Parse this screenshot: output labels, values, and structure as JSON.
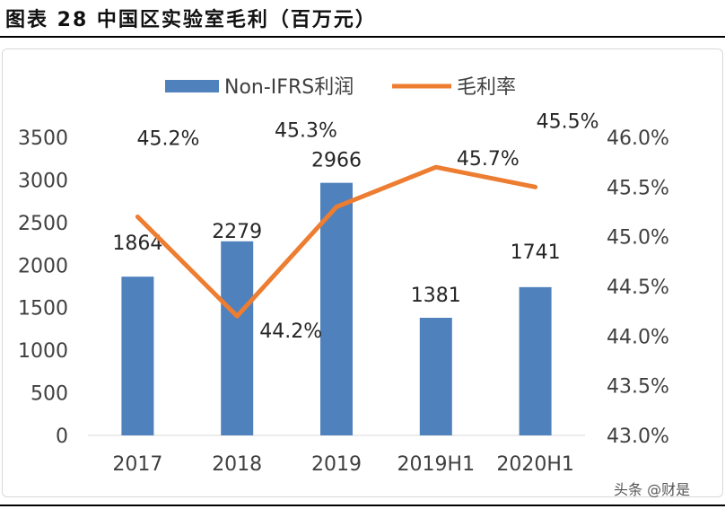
{
  "figure_title": "图表 28 中国区实验室毛利（百万元）",
  "watermark": "头条 @财是",
  "chart_data": {
    "type": "bar+line",
    "categories": [
      "2017",
      "2018",
      "2019",
      "2019H1",
      "2020H1"
    ],
    "series": [
      {
        "name": "Non-IFRS利润",
        "type": "bar",
        "axis": "left",
        "color": "#4F81BD",
        "values": [
          1864,
          2279,
          2966,
          1381,
          1741
        ],
        "labels": [
          "1864",
          "2279",
          "2966",
          "1381",
          "1741"
        ]
      },
      {
        "name": "毛利率",
        "type": "line",
        "axis": "right",
        "color": "#ED7D31",
        "values": [
          45.2,
          44.2,
          45.3,
          45.7,
          45.5
        ],
        "labels": [
          "45.2%",
          "44.2%",
          "45.3%",
          "45.7%",
          "45.5%"
        ]
      }
    ],
    "y_left": {
      "min": 0,
      "max": 3500,
      "step": 500,
      "ticks": [
        "0",
        "500",
        "1000",
        "1500",
        "2000",
        "2500",
        "3000",
        "3500"
      ]
    },
    "y_right": {
      "min": 43.0,
      "max": 46.0,
      "step": 0.5,
      "ticks": [
        "43.0%",
        "43.5%",
        "44.0%",
        "44.5%",
        "45.0%",
        "45.5%",
        "46.0%"
      ]
    },
    "legend_position": "top",
    "grid": false
  }
}
